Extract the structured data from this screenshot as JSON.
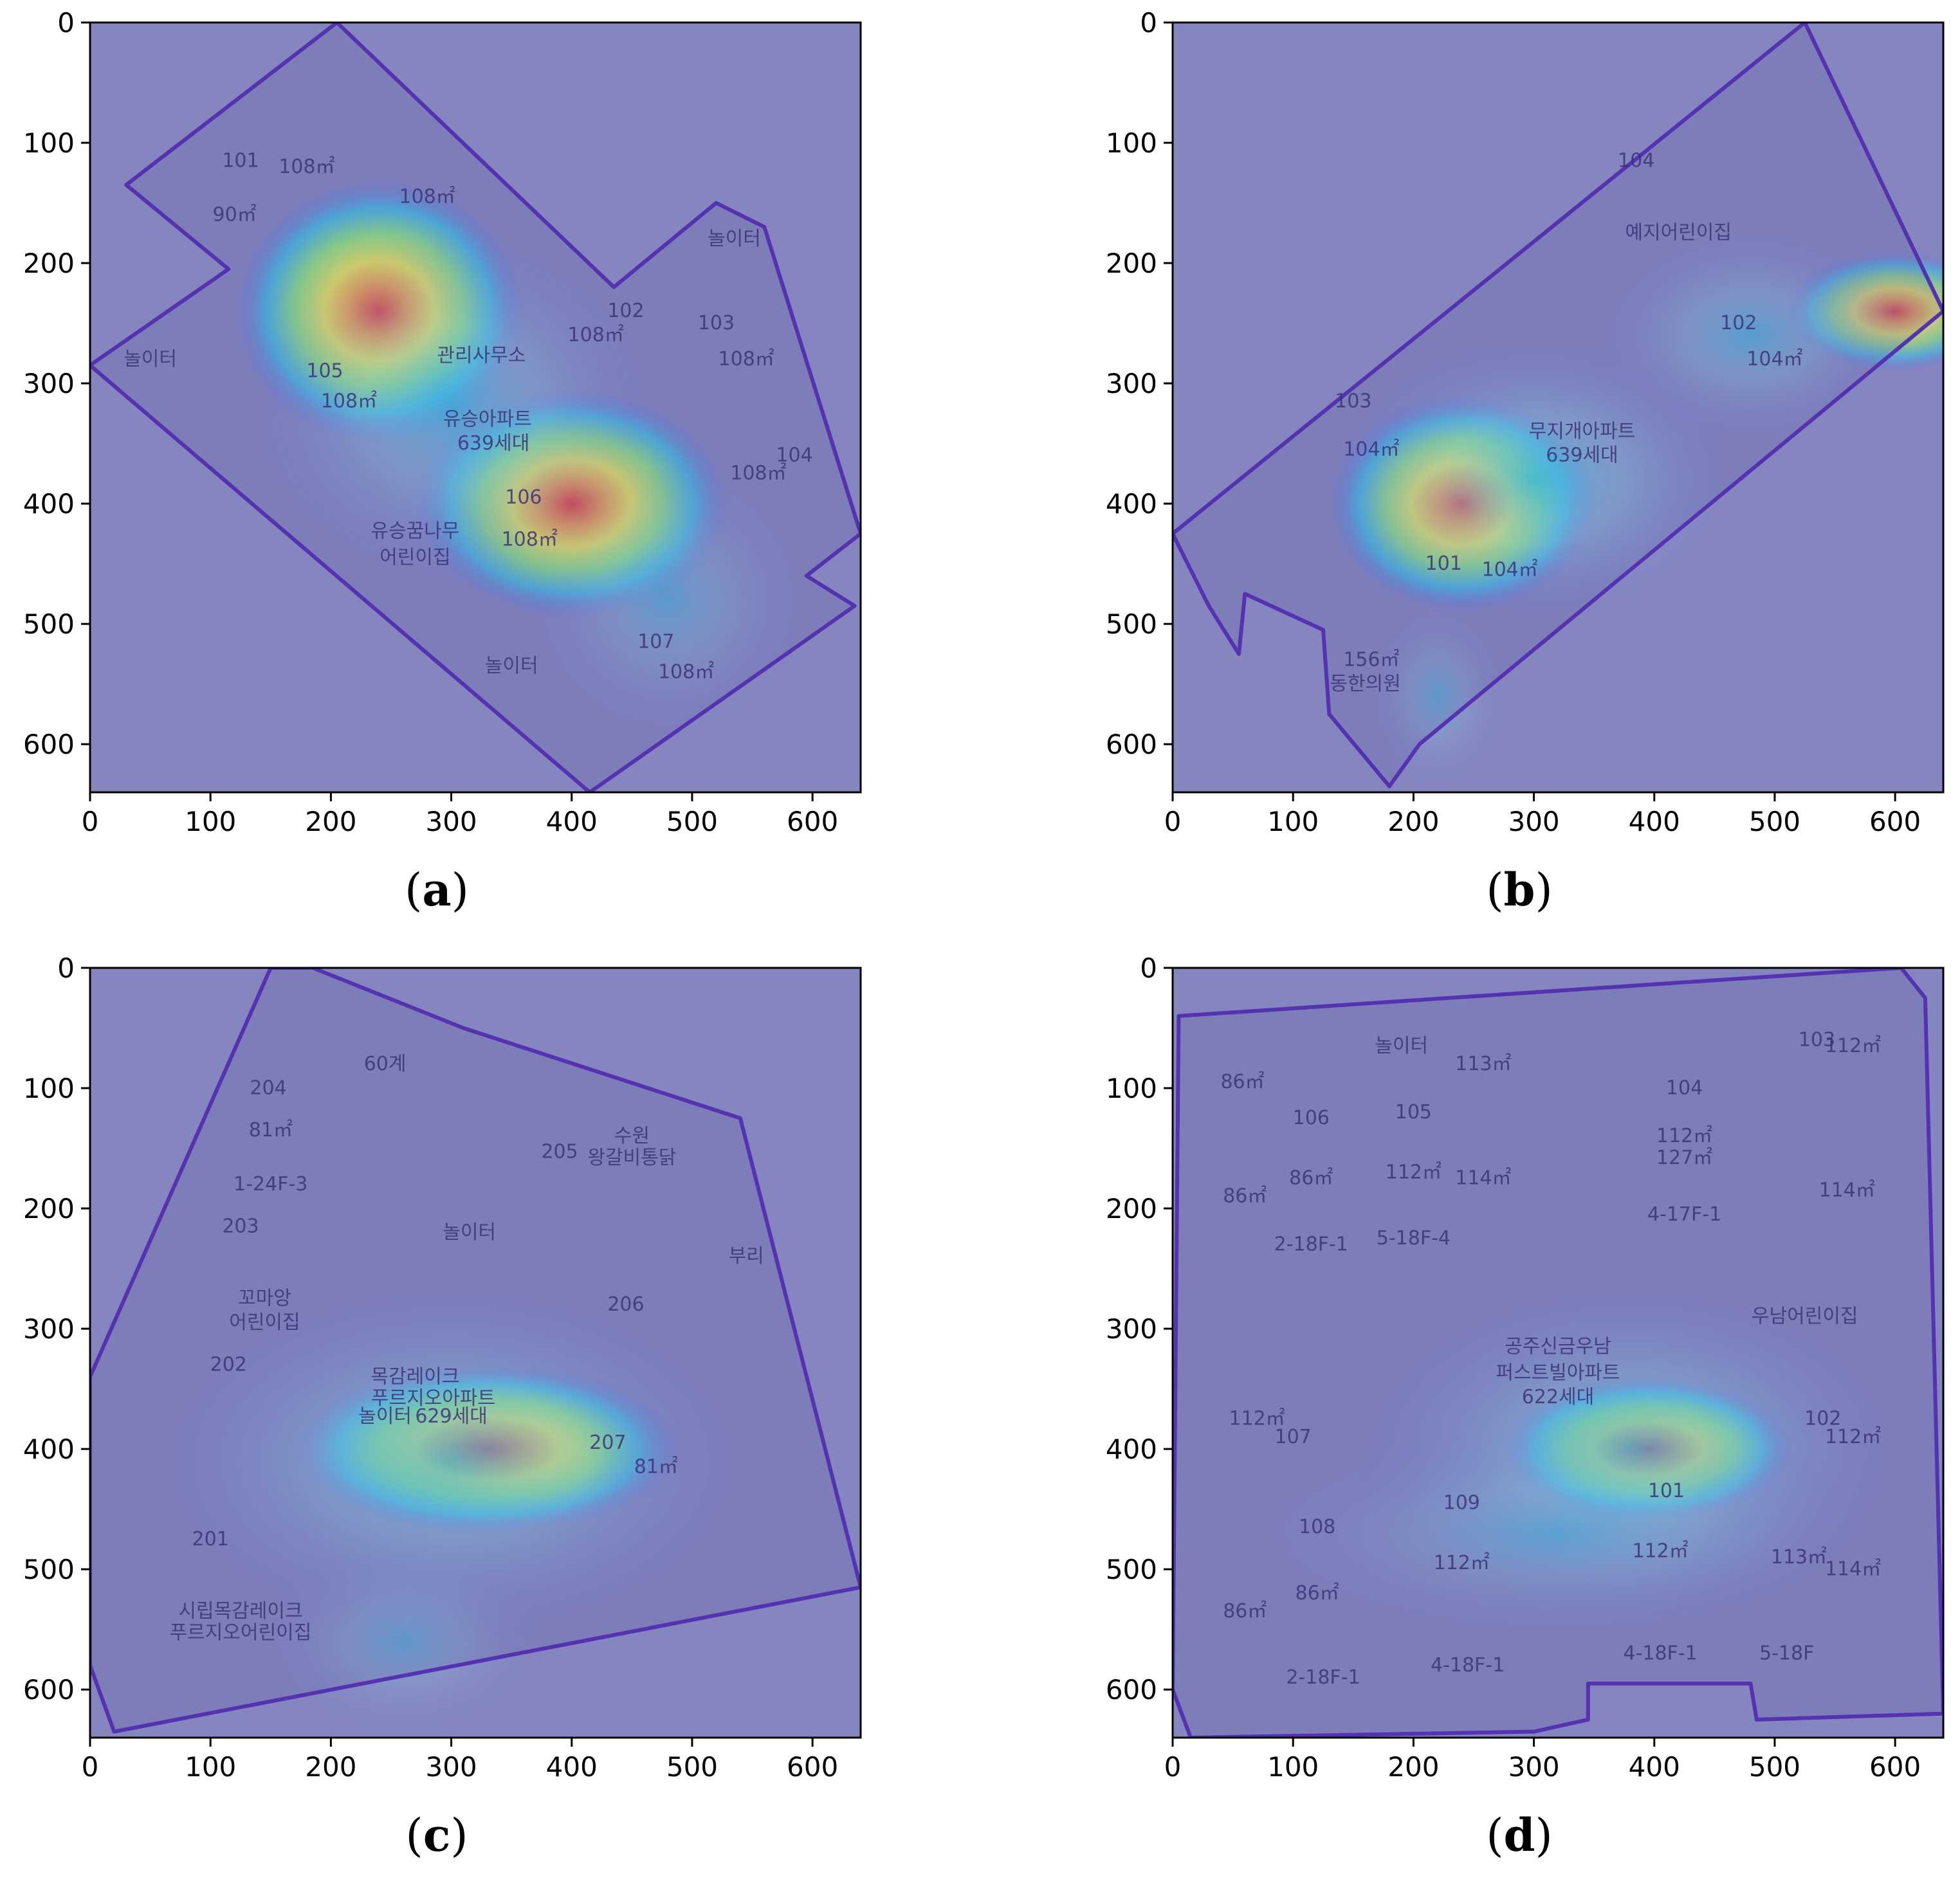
{
  "chart_data": [
    {
      "type": "heatmap",
      "caption": "(a)",
      "xlim": [
        0,
        640
      ],
      "ylim": [
        640,
        0
      ],
      "xticks": [
        0,
        100,
        200,
        300,
        400,
        500,
        600
      ],
      "yticks": [
        0,
        100,
        200,
        300,
        400,
        500,
        600
      ],
      "hotspots": [
        {
          "x": 240,
          "y": 240,
          "intensity": 1.0,
          "rx": 120,
          "ry": 110
        },
        {
          "x": 400,
          "y": 400,
          "intensity": 0.95,
          "rx": 130,
          "ry": 95
        },
        {
          "x": 300,
          "y": 320,
          "intensity": 0.55,
          "rx": 170,
          "ry": 150
        },
        {
          "x": 480,
          "y": 480,
          "intensity": 0.35,
          "rx": 120,
          "ry": 120
        }
      ],
      "boundary": [
        [
          30,
          135
        ],
        [
          205,
          0
        ],
        [
          435,
          220
        ],
        [
          520,
          150
        ],
        [
          560,
          170
        ],
        [
          640,
          425
        ],
        [
          595,
          460
        ],
        [
          635,
          485
        ],
        [
          415,
          640
        ],
        [
          0,
          285
        ],
        [
          115,
          205
        ]
      ],
      "labels": [
        {
          "text": "101",
          "x": 125,
          "y": 120
        },
        {
          "text": "108㎡",
          "x": 180,
          "y": 125
        },
        {
          "text": "90㎡",
          "x": 120,
          "y": 165
        },
        {
          "text": "108㎡",
          "x": 280,
          "y": 150
        },
        {
          "text": "놀이터",
          "x": 535,
          "y": 185
        },
        {
          "text": "102",
          "x": 445,
          "y": 245
        },
        {
          "text": "103",
          "x": 520,
          "y": 255
        },
        {
          "text": "108㎡",
          "x": 420,
          "y": 265
        },
        {
          "text": "108㎡",
          "x": 545,
          "y": 285
        },
        {
          "text": "놀이터",
          "x": 50,
          "y": 285
        },
        {
          "text": "관리사무소",
          "x": 325,
          "y": 282
        },
        {
          "text": "105",
          "x": 195,
          "y": 295
        },
        {
          "text": "108㎡",
          "x": 215,
          "y": 320
        },
        {
          "text": "유승아파트",
          "x": 330,
          "y": 335
        },
        {
          "text": "639세대",
          "x": 335,
          "y": 355
        },
        {
          "text": "104",
          "x": 585,
          "y": 365
        },
        {
          "text": "106",
          "x": 360,
          "y": 400
        },
        {
          "text": "108㎡",
          "x": 555,
          "y": 380
        },
        {
          "text": "108㎡",
          "x": 365,
          "y": 435
        },
        {
          "text": "유승꿈나무",
          "x": 270,
          "y": 428
        },
        {
          "text": "어린이집",
          "x": 270,
          "y": 450
        },
        {
          "text": "107",
          "x": 470,
          "y": 520
        },
        {
          "text": "108㎡",
          "x": 495,
          "y": 545
        },
        {
          "text": "놀이터",
          "x": 350,
          "y": 540
        }
      ]
    },
    {
      "type": "heatmap",
      "caption": "(b)",
      "xlim": [
        0,
        640
      ],
      "ylim": [
        640,
        0
      ],
      "xticks": [
        0,
        100,
        200,
        300,
        400,
        500,
        600
      ],
      "yticks": [
        0,
        100,
        200,
        300,
        400,
        500,
        600
      ],
      "hotspots": [
        {
          "x": 240,
          "y": 400,
          "intensity": 1.0,
          "rx": 110,
          "ry": 90
        },
        {
          "x": 300,
          "y": 380,
          "intensity": 0.65,
          "rx": 170,
          "ry": 120
        },
        {
          "x": 600,
          "y": 240,
          "intensity": 0.75,
          "rx": 90,
          "ry": 50
        },
        {
          "x": 480,
          "y": 260,
          "intensity": 0.45,
          "rx": 130,
          "ry": 90
        },
        {
          "x": 220,
          "y": 560,
          "intensity": 0.3,
          "rx": 60,
          "ry": 80
        }
      ],
      "boundary": [
        [
          0,
          425
        ],
        [
          525,
          0
        ],
        [
          640,
          240
        ],
        [
          205,
          600
        ],
        [
          180,
          635
        ],
        [
          130,
          575
        ],
        [
          125,
          505
        ],
        [
          60,
          475
        ],
        [
          55,
          525
        ],
        [
          30,
          485
        ]
      ],
      "labels": [
        {
          "text": "104",
          "x": 385,
          "y": 120
        },
        {
          "text": "예지어린이집",
          "x": 420,
          "y": 180
        },
        {
          "text": "102",
          "x": 470,
          "y": 255
        },
        {
          "text": "104㎡",
          "x": 500,
          "y": 285
        },
        {
          "text": "103",
          "x": 150,
          "y": 320
        },
        {
          "text": "무지개아파트",
          "x": 340,
          "y": 345
        },
        {
          "text": "639세대",
          "x": 340,
          "y": 365
        },
        {
          "text": "104㎡",
          "x": 165,
          "y": 360
        },
        {
          "text": "101",
          "x": 225,
          "y": 455
        },
        {
          "text": "104㎡",
          "x": 280,
          "y": 460
        },
        {
          "text": "156㎡",
          "x": 165,
          "y": 535
        },
        {
          "text": "동한의원",
          "x": 160,
          "y": 555
        }
      ]
    },
    {
      "type": "heatmap",
      "caption": "(c)",
      "xlim": [
        0,
        640
      ],
      "ylim": [
        640,
        0
      ],
      "xticks": [
        0,
        100,
        200,
        300,
        400,
        500,
        600
      ],
      "yticks": [
        0,
        100,
        200,
        300,
        400,
        500,
        600
      ],
      "hotspots": [
        {
          "x": 330,
          "y": 400,
          "intensity": 1.0,
          "rx": 160,
          "ry": 70
        },
        {
          "x": 300,
          "y": 410,
          "intensity": 0.6,
          "rx": 250,
          "ry": 150
        },
        {
          "x": 260,
          "y": 560,
          "intensity": 0.3,
          "rx": 120,
          "ry": 80
        }
      ],
      "boundary": [
        [
          0,
          340
        ],
        [
          150,
          0
        ],
        [
          185,
          0
        ],
        [
          310,
          50
        ],
        [
          540,
          125
        ],
        [
          640,
          515
        ],
        [
          20,
          635
        ],
        [
          0,
          580
        ]
      ],
      "labels": [
        {
          "text": "60계",
          "x": 245,
          "y": 85
        },
        {
          "text": "204",
          "x": 148,
          "y": 105
        },
        {
          "text": "81㎡",
          "x": 150,
          "y": 140
        },
        {
          "text": "수원",
          "x": 450,
          "y": 145
        },
        {
          "text": "왕갈비통닭",
          "x": 450,
          "y": 163
        },
        {
          "text": "205",
          "x": 390,
          "y": 158
        },
        {
          "text": "1-24F-3",
          "x": 150,
          "y": 185
        },
        {
          "text": "203",
          "x": 125,
          "y": 220
        },
        {
          "text": "놀이터",
          "x": 315,
          "y": 225
        },
        {
          "text": "부리",
          "x": 545,
          "y": 245
        },
        {
          "text": "꼬마앙",
          "x": 145,
          "y": 280
        },
        {
          "text": "어린이집",
          "x": 145,
          "y": 300
        },
        {
          "text": "206",
          "x": 445,
          "y": 285
        },
        {
          "text": "202",
          "x": 115,
          "y": 335
        },
        {
          "text": "목감레이크",
          "x": 270,
          "y": 345
        },
        {
          "text": "푸르지오아파트",
          "x": 285,
          "y": 363
        },
        {
          "text": "놀이터",
          "x": 245,
          "y": 378
        },
        {
          "text": "629세대",
          "x": 300,
          "y": 378
        },
        {
          "text": "207",
          "x": 430,
          "y": 400
        },
        {
          "text": "81㎡",
          "x": 470,
          "y": 420
        },
        {
          "text": "201",
          "x": 100,
          "y": 480
        },
        {
          "text": "시립목감레이크",
          "x": 125,
          "y": 540
        },
        {
          "text": "푸르지오어린이집",
          "x": 125,
          "y": 558
        }
      ]
    },
    {
      "type": "heatmap",
      "caption": "(d)",
      "xlim": [
        0,
        640
      ],
      "ylim": [
        640,
        0
      ],
      "xticks": [
        0,
        100,
        200,
        300,
        400,
        500,
        600
      ],
      "yticks": [
        0,
        100,
        200,
        300,
        400,
        500,
        600
      ],
      "hotspots": [
        {
          "x": 395,
          "y": 400,
          "intensity": 1.0,
          "rx": 120,
          "ry": 60
        },
        {
          "x": 380,
          "y": 400,
          "intensity": 0.6,
          "rx": 230,
          "ry": 140
        },
        {
          "x": 320,
          "y": 470,
          "intensity": 0.35,
          "rx": 260,
          "ry": 90
        }
      ],
      "boundary": [
        [
          5,
          40
        ],
        [
          605,
          0
        ],
        [
          625,
          25
        ],
        [
          640,
          620
        ],
        [
          485,
          625
        ],
        [
          480,
          595
        ],
        [
          345,
          595
        ],
        [
          345,
          625
        ],
        [
          300,
          635
        ],
        [
          15,
          640
        ],
        [
          0,
          600
        ]
      ],
      "labels": [
        {
          "text": "놀이터",
          "x": 190,
          "y": 70
        },
        {
          "text": "113㎡",
          "x": 258,
          "y": 85
        },
        {
          "text": "86㎡",
          "x": 58,
          "y": 100
        },
        {
          "text": "103",
          "x": 535,
          "y": 65
        },
        {
          "text": "112㎡",
          "x": 565,
          "y": 70
        },
        {
          "text": "106",
          "x": 115,
          "y": 130
        },
        {
          "text": "105",
          "x": 200,
          "y": 125
        },
        {
          "text": "104",
          "x": 425,
          "y": 105
        },
        {
          "text": "112㎡",
          "x": 425,
          "y": 145
        },
        {
          "text": "127㎡",
          "x": 425,
          "y": 163
        },
        {
          "text": "86㎡",
          "x": 115,
          "y": 180
        },
        {
          "text": "112㎡",
          "x": 200,
          "y": 175
        },
        {
          "text": "114㎡",
          "x": 258,
          "y": 180
        },
        {
          "text": "86㎡",
          "x": 60,
          "y": 195
        },
        {
          "text": "114㎡",
          "x": 560,
          "y": 190
        },
        {
          "text": "4-17F-1",
          "x": 425,
          "y": 210
        },
        {
          "text": "2-18F-1",
          "x": 115,
          "y": 235
        },
        {
          "text": "5-18F-4",
          "x": 200,
          "y": 230
        },
        {
          "text": "우남어린이집",
          "x": 525,
          "y": 295
        },
        {
          "text": "공주신금우남",
          "x": 320,
          "y": 320
        },
        {
          "text": "퍼스트빌아파트",
          "x": 320,
          "y": 342
        },
        {
          "text": "622세대",
          "x": 320,
          "y": 362
        },
        {
          "text": "112㎡",
          "x": 70,
          "y": 380
        },
        {
          "text": "107",
          "x": 100,
          "y": 395
        },
        {
          "text": "102",
          "x": 540,
          "y": 380
        },
        {
          "text": "112㎡",
          "x": 565,
          "y": 395
        },
        {
          "text": "101",
          "x": 410,
          "y": 440
        },
        {
          "text": "109",
          "x": 240,
          "y": 450
        },
        {
          "text": "108",
          "x": 120,
          "y": 470
        },
        {
          "text": "112㎡",
          "x": 240,
          "y": 500
        },
        {
          "text": "112㎡",
          "x": 405,
          "y": 490
        },
        {
          "text": "113㎡",
          "x": 520,
          "y": 495
        },
        {
          "text": "86㎡",
          "x": 120,
          "y": 525
        },
        {
          "text": "114㎡",
          "x": 565,
          "y": 505
        },
        {
          "text": "86㎡",
          "x": 60,
          "y": 540
        },
        {
          "text": "4-18F-1",
          "x": 245,
          "y": 585
        },
        {
          "text": "4-18F-1",
          "x": 405,
          "y": 575
        },
        {
          "text": "5-18F",
          "x": 510,
          "y": 575
        },
        {
          "text": "2-18F-1",
          "x": 125,
          "y": 595
        }
      ]
    }
  ]
}
